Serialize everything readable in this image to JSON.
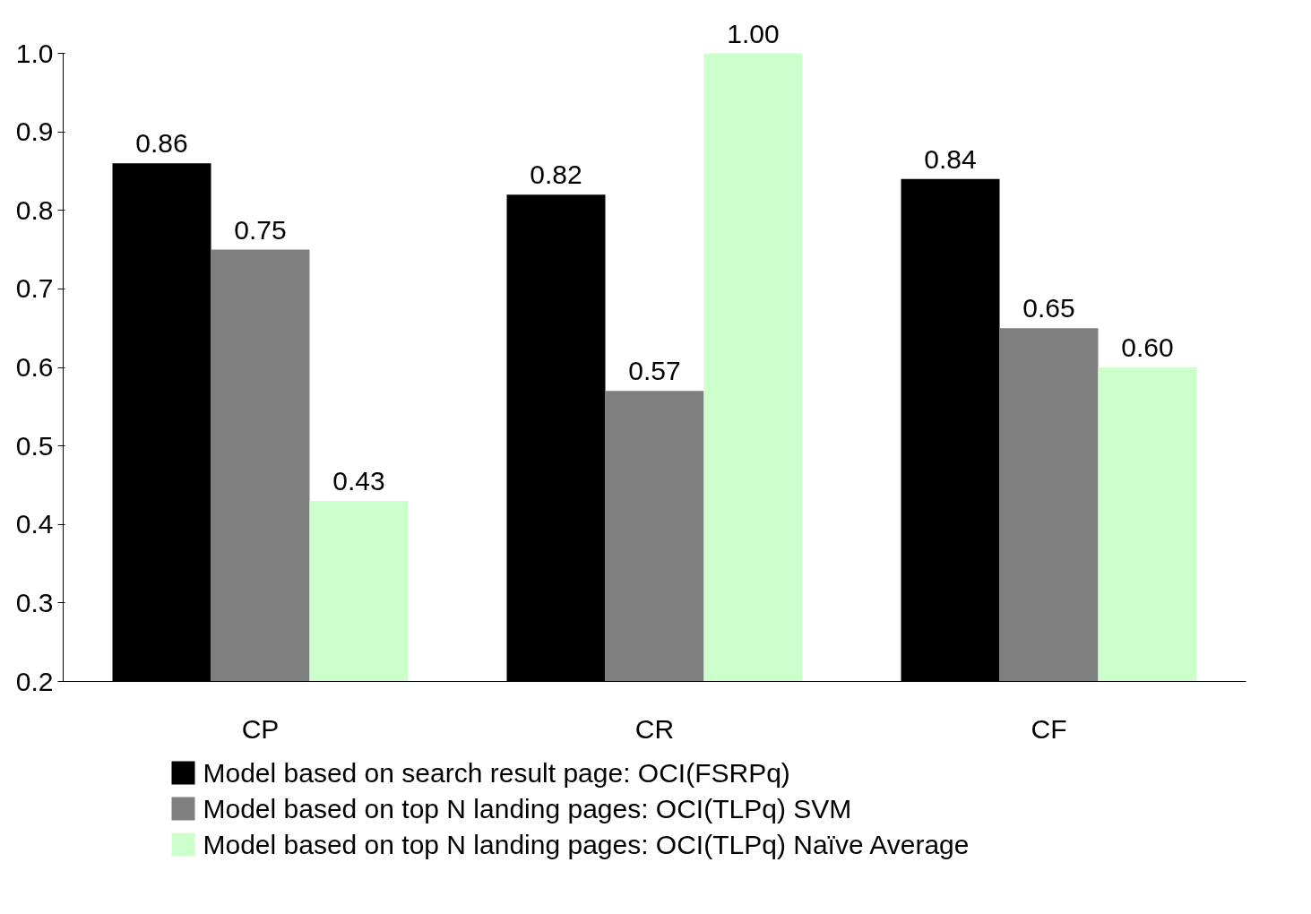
{
  "chart_data": {
    "type": "bar",
    "categories": [
      "CP",
      "CR",
      "CF"
    ],
    "series": [
      {
        "name": "Model based on search result page: OCI(FSRPq)",
        "color": "#000000",
        "values": [
          0.86,
          0.82,
          0.84
        ],
        "value_labels": [
          "0.86",
          "0.82",
          "0.84"
        ]
      },
      {
        "name": "Model based on top N landing pages: OCI(TLPq) SVM",
        "color": "#808080",
        "values": [
          0.75,
          0.57,
          0.65
        ],
        "value_labels": [
          "0.75",
          "0.57",
          "0.65"
        ]
      },
      {
        "name": "Model based on top N landing pages: OCI(TLPq) Naïve Average",
        "color": "#ccffcc",
        "values": [
          0.43,
          1.0,
          0.6
        ],
        "value_labels": [
          "0.43",
          "1.00",
          "0.60"
        ]
      }
    ],
    "ylim": [
      0.2,
      1.0
    ],
    "yticks": [
      {
        "value": 0.2,
        "label": "0.2"
      },
      {
        "value": 0.3,
        "label": "0.3"
      },
      {
        "value": 0.4,
        "label": "0.4"
      },
      {
        "value": 0.5,
        "label": "0.5"
      },
      {
        "value": 0.6,
        "label": "0.6"
      },
      {
        "value": 0.7,
        "label": "0.7"
      },
      {
        "value": 0.8,
        "label": "0.8"
      },
      {
        "value": 0.9,
        "label": "0.9"
      },
      {
        "value": 1.0,
        "label": "1.0"
      }
    ],
    "grid": false,
    "legend": "bottom"
  }
}
